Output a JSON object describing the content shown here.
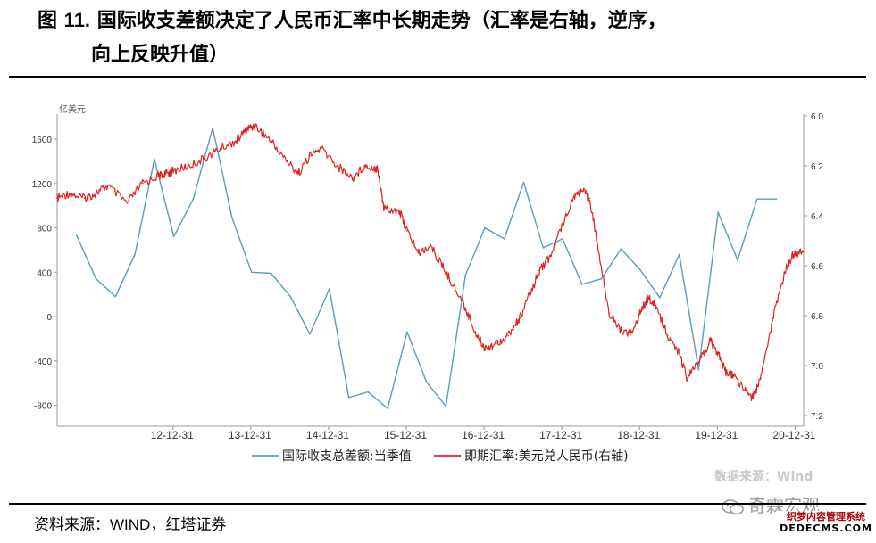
{
  "title": {
    "prefix": "图 ",
    "number": "11.",
    "text_line1": " 国际收支差额决定了人民币汇率中长期走势（汇率是右轴，逆序，",
    "text_line2": "向上反映升值）"
  },
  "source_badge": "数据来源：Wind",
  "footer": {
    "label": "资料来源：",
    "source": "WIND，红塔证券"
  },
  "watermark": {
    "name": "奇霖宏观",
    "site": "织梦内容管理系统",
    "url": "DEDECMS.COM"
  },
  "colors": {
    "balance": "#5b9bbd",
    "rate": "#e0221f",
    "axis": "#999999"
  },
  "chart_data": {
    "type": "line",
    "left_axis": {
      "unit_label": "亿美元",
      "ticks": [
        "1600",
        "1200",
        "800",
        "400",
        "0",
        "-400",
        "-800"
      ],
      "ylim": [
        -1000,
        1800
      ]
    },
    "right_axis": {
      "ticks": [
        "6.0",
        "6.2",
        "6.4",
        "6.6",
        "6.8",
        "7.0",
        "7.2"
      ],
      "ylim": [
        6.0,
        7.22
      ],
      "inverted": true
    },
    "x_ticks": [
      "12-12-31",
      "13-12-31",
      "14-12-31",
      "15-12-31",
      "16-12-31",
      "17-12-31",
      "18-12-31",
      "19-12-31",
      "20-12-31"
    ],
    "series": [
      {
        "name": "国际收支总差额:当季值",
        "axis": "left",
        "x": [
          2011.75,
          2012.0,
          2012.25,
          2012.5,
          2012.75,
          2013.0,
          2013.25,
          2013.5,
          2013.75,
          2014.0,
          2014.25,
          2014.5,
          2014.75,
          2015.0,
          2015.25,
          2015.5,
          2015.75,
          2016.0,
          2016.25,
          2016.5,
          2016.75,
          2017.0,
          2017.25,
          2017.5,
          2017.75,
          2018.0,
          2018.25,
          2018.5,
          2018.75,
          2019.0,
          2019.25,
          2019.5,
          2019.75,
          2020.0,
          2020.25,
          2020.5,
          2020.75
        ],
        "values": [
          730,
          340,
          180,
          560,
          1420,
          720,
          1060,
          1700,
          890,
          400,
          390,
          180,
          -160,
          250,
          -730,
          -680,
          -830,
          -140,
          -590,
          -810,
          370,
          800,
          700,
          1210,
          620,
          700,
          290,
          340,
          610,
          420,
          170,
          560,
          -480,
          940,
          510,
          1060,
          1060
        ]
      },
      {
        "name": "即期汇率:美元兑人民币(右轴)",
        "axis": "right",
        "x": [
          2011.5,
          2011.65,
          2011.85,
          2012.0,
          2012.15,
          2012.4,
          2012.6,
          2012.8,
          2012.9,
          2013.0,
          2013.2,
          2013.4,
          2013.6,
          2013.8,
          2013.95,
          2014.05,
          2014.25,
          2014.45,
          2014.6,
          2014.75,
          2014.9,
          2015.1,
          2015.3,
          2015.45,
          2015.6,
          2015.62,
          2015.7,
          2015.9,
          2016.0,
          2016.15,
          2016.3,
          2016.45,
          2016.6,
          2016.75,
          2016.9,
          2017.0,
          2017.15,
          2017.3,
          2017.45,
          2017.6,
          2017.7,
          2017.85,
          2018.0,
          2018.15,
          2018.25,
          2018.35,
          2018.45,
          2018.6,
          2018.75,
          2018.9,
          2019.0,
          2019.1,
          2019.2,
          2019.35,
          2019.5,
          2019.6,
          2019.75,
          2019.9,
          2020.0,
          2020.1,
          2020.2,
          2020.35,
          2020.45,
          2020.55,
          2020.7,
          2020.85,
          2020.95,
          2021.0,
          2021.1
        ],
        "values": [
          6.33,
          6.31,
          6.33,
          6.31,
          6.28,
          6.35,
          6.27,
          6.24,
          6.23,
          6.22,
          6.2,
          6.17,
          6.13,
          6.1,
          6.05,
          6.04,
          6.1,
          6.18,
          6.23,
          6.16,
          6.13,
          6.2,
          6.25,
          6.2,
          6.21,
          6.21,
          6.37,
          6.38,
          6.46,
          6.55,
          6.52,
          6.6,
          6.68,
          6.77,
          6.88,
          6.93,
          6.91,
          6.88,
          6.81,
          6.7,
          6.62,
          6.56,
          6.43,
          6.32,
          6.3,
          6.33,
          6.52,
          6.79,
          6.86,
          6.87,
          6.78,
          6.73,
          6.76,
          6.88,
          6.95,
          7.05,
          6.99,
          6.9,
          6.95,
          7.03,
          7.04,
          7.1,
          7.13,
          7.05,
          6.82,
          6.63,
          6.56,
          6.55,
          6.54
        ]
      }
    ],
    "grid": false,
    "legend_position": "bottom"
  }
}
